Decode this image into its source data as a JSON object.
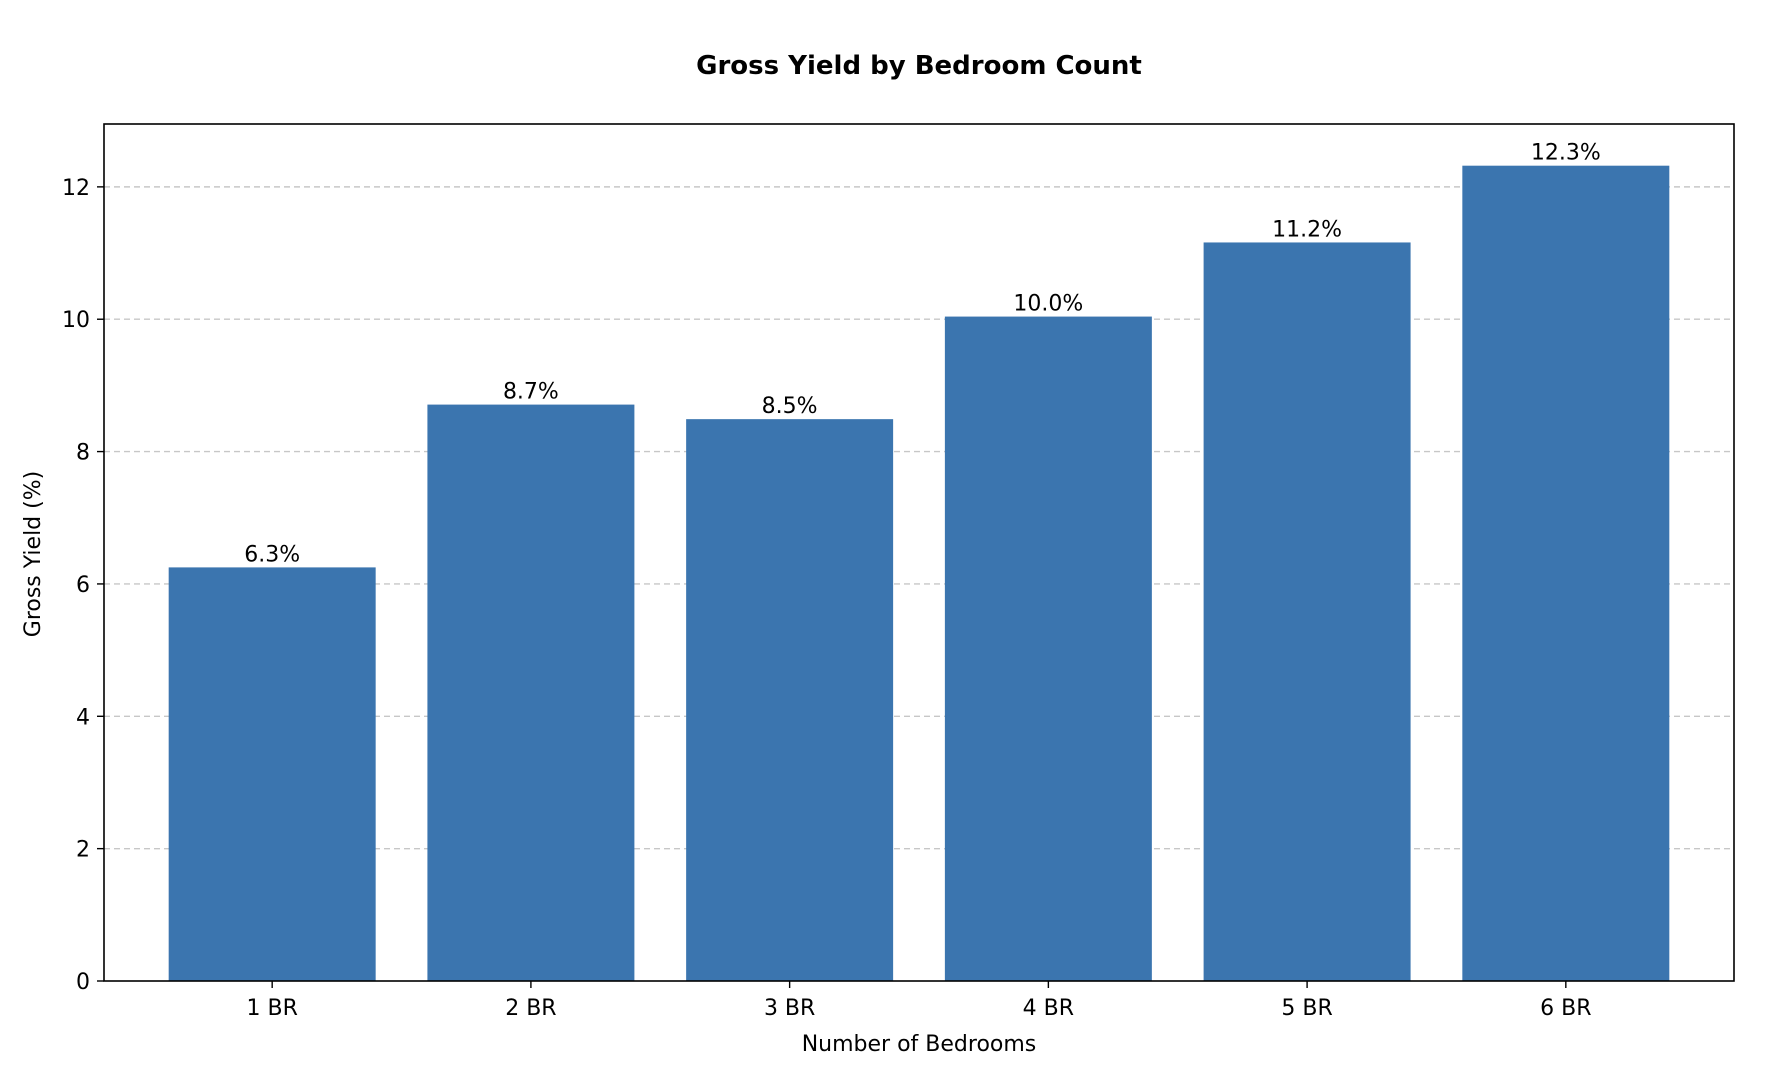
{
  "chart_data": {
    "type": "bar",
    "title": "Gross Yield by Bedroom Count",
    "xlabel": "Number of Bedrooms",
    "ylabel": "Gross Yield (%)",
    "categories": [
      "1 BR",
      "2 BR",
      "3 BR",
      "4 BR",
      "5 BR",
      "6 BR"
    ],
    "values": [
      6.25,
      8.71,
      8.49,
      10.04,
      11.16,
      12.32
    ],
    "value_labels": [
      "6.3%",
      "8.7%",
      "8.5%",
      "10.0%",
      "11.2%",
      "12.3%"
    ],
    "ylim": [
      0,
      12.95
    ],
    "yticks": [
      0,
      2,
      4,
      6,
      8,
      10,
      12
    ],
    "ytick_labels": [
      "0",
      "2",
      "4",
      "6",
      "8",
      "10",
      "12"
    ],
    "grid": "y-dashed",
    "bar_color": "#3b75af",
    "grid_color": "#c7c7c7"
  }
}
